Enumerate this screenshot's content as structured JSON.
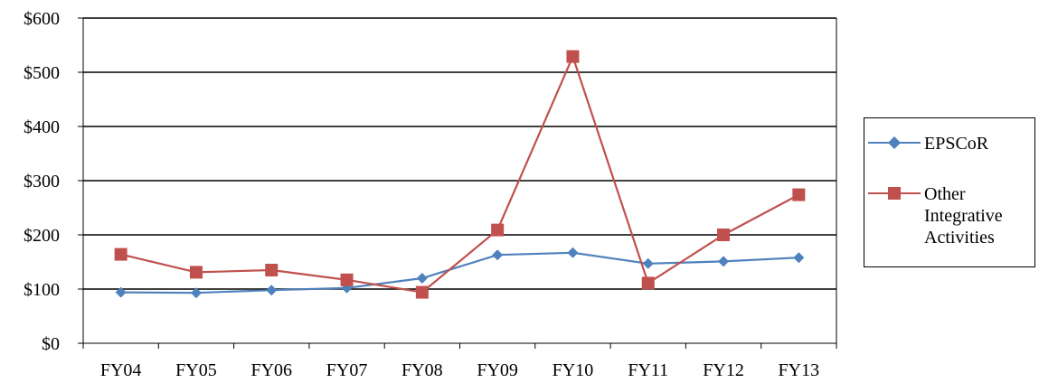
{
  "chart_data": {
    "type": "line",
    "title": "",
    "xlabel": "",
    "ylabel": "",
    "categories": [
      "FY04",
      "FY05",
      "FY06",
      "FY07",
      "FY08",
      "FY09",
      "FY10",
      "FY11",
      "FY12",
      "FY13"
    ],
    "y_ticks": [
      "$0",
      "$100",
      "$200",
      "$300",
      "$400",
      "$500",
      "$600"
    ],
    "ylim": [
      0,
      600
    ],
    "grid": true,
    "legend_position": "right",
    "series": [
      {
        "name": "EPSCoR",
        "color": "#4F81BD",
        "marker": "diamond",
        "values": [
          94,
          93,
          98,
          102,
          120,
          163,
          167,
          147,
          151,
          158
        ]
      },
      {
        "name": "Other Integrative Activities",
        "color": "#C0504D",
        "marker": "square",
        "values": [
          164,
          131,
          135,
          117,
          94,
          209,
          529,
          111,
          200,
          274
        ]
      }
    ]
  },
  "legend": {
    "items": [
      {
        "label_lines": [
          "EPSCoR"
        ]
      },
      {
        "label_lines": [
          "Other",
          "Integrative",
          "Activities"
        ]
      }
    ]
  }
}
